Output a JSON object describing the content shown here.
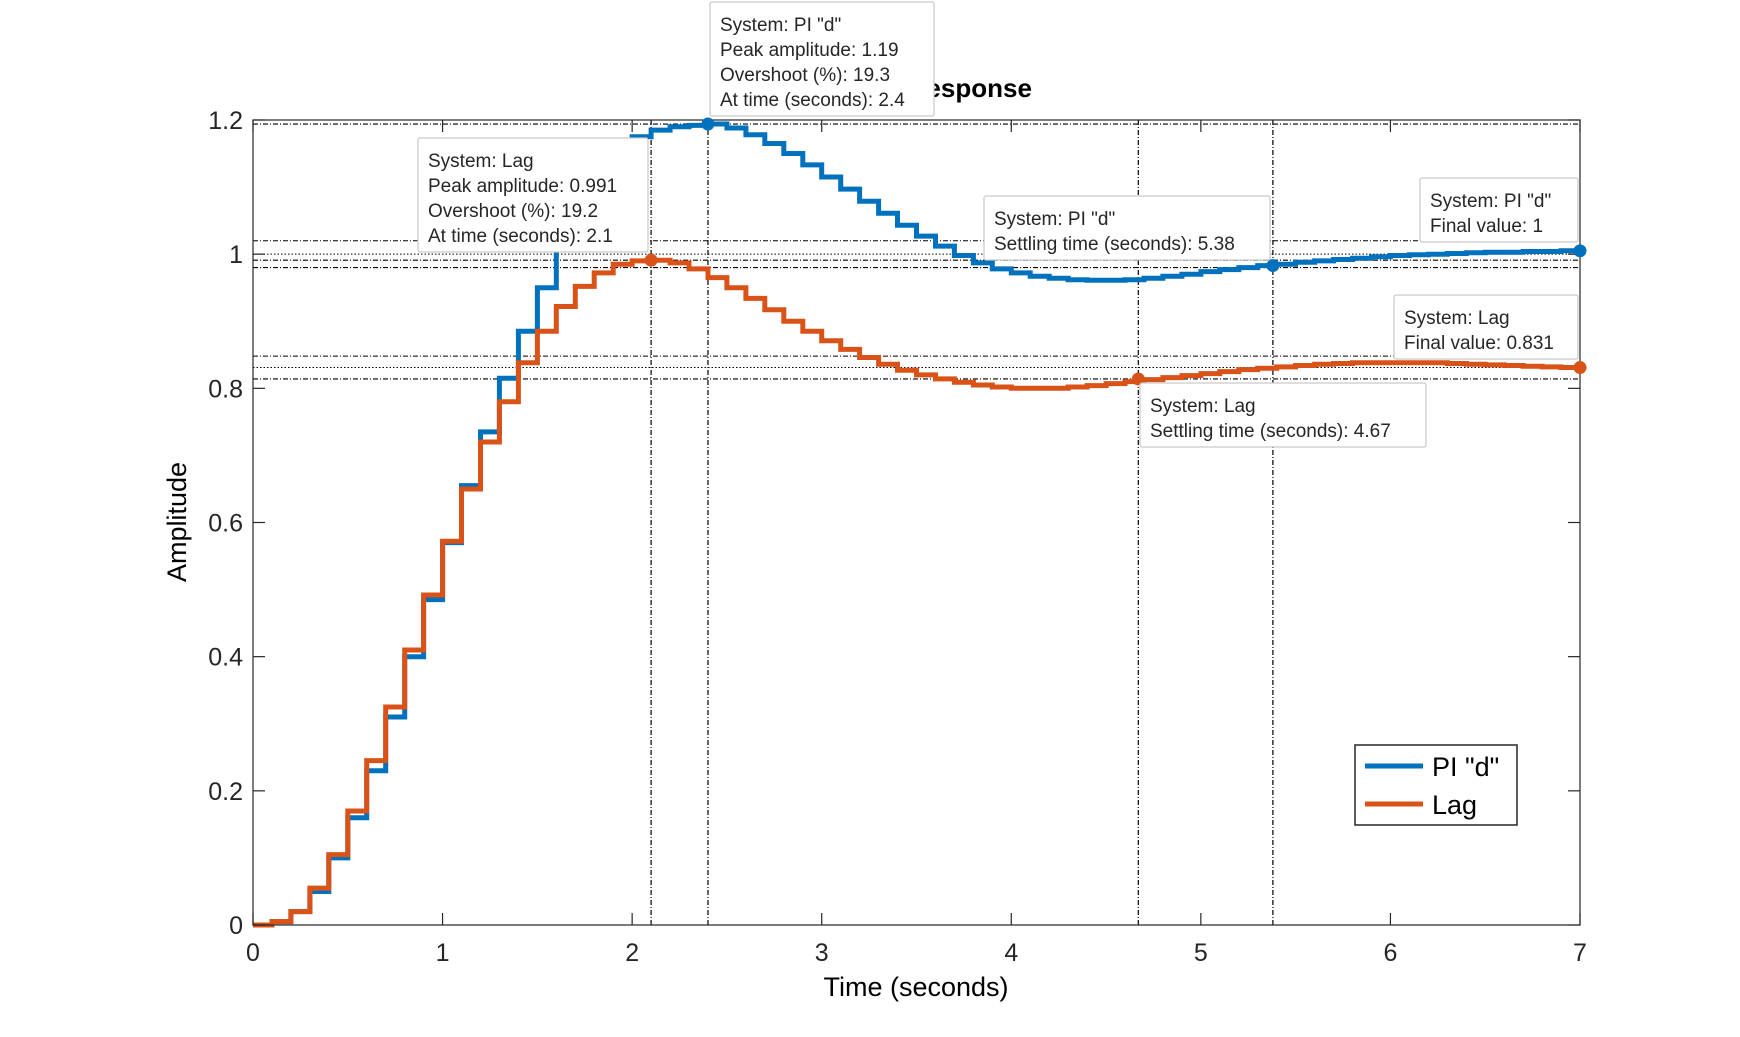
{
  "chart_data": {
    "type": "line",
    "title": "Step Response",
    "xlabel": "Time (seconds)",
    "ylabel": "Amplitude",
    "xlim": [
      0,
      7
    ],
    "ylim": [
      0,
      1.2
    ],
    "xticks": [
      0,
      1,
      2,
      3,
      4,
      5,
      6,
      7
    ],
    "yticks": [
      0,
      0.2,
      0.4,
      0.6,
      0.8,
      1,
      1.2
    ],
    "xtick_labels": [
      "0",
      "1",
      "2",
      "3",
      "4",
      "5",
      "6",
      "7"
    ],
    "ytick_labels": [
      "0",
      "0.2",
      "0.4",
      "0.6",
      "0.8",
      "1",
      "1.2"
    ],
    "grid": false,
    "legend_position": "bottom-right",
    "sample_time": 0.1,
    "series": [
      {
        "name": "PI \"d\"",
        "color": "#0072BD",
        "step_style": true,
        "x": [
          0,
          0.1,
          0.2,
          0.3,
          0.4,
          0.5,
          0.6,
          0.7,
          0.8,
          0.9,
          1.0,
          1.1,
          1.2,
          1.3,
          1.4,
          1.5,
          1.6,
          1.7,
          1.8,
          1.9,
          2.0,
          2.1,
          2.2,
          2.3,
          2.4,
          2.5,
          2.6,
          2.7,
          2.8,
          2.9,
          3.0,
          3.1,
          3.2,
          3.3,
          3.4,
          3.5,
          3.6,
          3.7,
          3.8,
          3.9,
          4.0,
          4.1,
          4.2,
          4.3,
          4.4,
          4.5,
          4.6,
          4.7,
          4.8,
          4.9,
          5.0,
          5.1,
          5.2,
          5.3,
          5.4,
          5.5,
          5.6,
          5.7,
          5.8,
          5.9,
          6.0,
          6.1,
          6.2,
          6.3,
          6.4,
          6.5,
          6.6,
          6.7,
          6.8,
          6.9,
          7.0
        ],
        "y": [
          0,
          0.005,
          0.02,
          0.05,
          0.1,
          0.16,
          0.23,
          0.31,
          0.4,
          0.485,
          0.57,
          0.655,
          0.735,
          0.815,
          0.885,
          0.95,
          1.01,
          1.06,
          1.11,
          1.15,
          1.175,
          1.185,
          1.19,
          1.192,
          1.194,
          1.188,
          1.178,
          1.165,
          1.15,
          1.133,
          1.115,
          1.097,
          1.079,
          1.061,
          1.043,
          1.027,
          1.012,
          0.998,
          0.987,
          0.978,
          0.972,
          0.967,
          0.964,
          0.962,
          0.961,
          0.961,
          0.962,
          0.964,
          0.967,
          0.97,
          0.974,
          0.977,
          0.98,
          0.983,
          0.985,
          0.988,
          0.99,
          0.992,
          0.994,
          0.996,
          0.998,
          0.999,
          1.0,
          1.001,
          1.002,
          1.003,
          1.003,
          1.004,
          1.004,
          1.005,
          1.005
        ]
      },
      {
        "name": "Lag",
        "color": "#D95319",
        "step_style": true,
        "x": [
          0,
          0.1,
          0.2,
          0.3,
          0.4,
          0.5,
          0.6,
          0.7,
          0.8,
          0.9,
          1.0,
          1.1,
          1.2,
          1.3,
          1.4,
          1.5,
          1.6,
          1.7,
          1.8,
          1.9,
          2.0,
          2.1,
          2.2,
          2.3,
          2.4,
          2.5,
          2.6,
          2.7,
          2.8,
          2.9,
          3.0,
          3.1,
          3.2,
          3.3,
          3.4,
          3.5,
          3.6,
          3.7,
          3.8,
          3.9,
          4.0,
          4.1,
          4.2,
          4.3,
          4.4,
          4.5,
          4.6,
          4.7,
          4.8,
          4.9,
          5.0,
          5.1,
          5.2,
          5.3,
          5.4,
          5.5,
          5.6,
          5.7,
          5.8,
          5.9,
          6.0,
          6.1,
          6.2,
          6.3,
          6.4,
          6.5,
          6.6,
          6.7,
          6.8,
          6.9,
          7.0
        ],
        "y": [
          0,
          0.005,
          0.02,
          0.055,
          0.105,
          0.17,
          0.245,
          0.325,
          0.41,
          0.492,
          0.572,
          0.65,
          0.72,
          0.78,
          0.838,
          0.885,
          0.922,
          0.952,
          0.972,
          0.985,
          0.99,
          0.991,
          0.987,
          0.978,
          0.965,
          0.95,
          0.934,
          0.917,
          0.9,
          0.885,
          0.871,
          0.858,
          0.846,
          0.836,
          0.827,
          0.82,
          0.814,
          0.809,
          0.805,
          0.802,
          0.8,
          0.8,
          0.8,
          0.802,
          0.804,
          0.807,
          0.81,
          0.813,
          0.816,
          0.819,
          0.822,
          0.825,
          0.828,
          0.83,
          0.832,
          0.834,
          0.836,
          0.837,
          0.838,
          0.838,
          0.838,
          0.838,
          0.838,
          0.837,
          0.836,
          0.835,
          0.834,
          0.833,
          0.832,
          0.831,
          0.831
        ]
      }
    ],
    "markers": [
      {
        "series": 0,
        "x": 2.4,
        "y": 1.194
      },
      {
        "series": 1,
        "x": 2.1,
        "y": 0.991
      },
      {
        "series": 0,
        "x": 5.38,
        "y": 0.983
      },
      {
        "series": 1,
        "x": 4.67,
        "y": 0.814
      },
      {
        "series": 0,
        "x": 7.0,
        "y": 1.005
      },
      {
        "series": 1,
        "x": 7.0,
        "y": 0.831
      }
    ],
    "vlines": [
      2.1,
      2.4,
      4.67,
      5.38
    ],
    "hlines_dashed": [
      1.194,
      0.991,
      1.02,
      0.98,
      0.848,
      0.814
    ],
    "hlines_dotted": [
      1.0,
      0.831
    ],
    "datatips": [
      {
        "name": "datatip-pi-peak",
        "lines": [
          "System: PI \"d\"",
          "Peak amplitude: 1.19",
          "Overshoot (%): 19.3",
          "At time (seconds): 2.4"
        ]
      },
      {
        "name": "datatip-lag-peak",
        "lines": [
          "System: Lag",
          "Peak amplitude: 0.991",
          "Overshoot (%): 19.2",
          "At time (seconds): 2.1"
        ]
      },
      {
        "name": "datatip-pi-settling",
        "lines": [
          "System: PI \"d\"",
          "Settling time (seconds): 5.38"
        ]
      },
      {
        "name": "datatip-pi-final",
        "lines": [
          "System: PI \"d\"",
          "Final value: 1"
        ]
      },
      {
        "name": "datatip-lag-final",
        "lines": [
          "System: Lag",
          "Final value: 0.831"
        ]
      },
      {
        "name": "datatip-lag-settling",
        "lines": [
          "System: Lag",
          "Settling time (seconds): 4.67"
        ]
      }
    ]
  }
}
